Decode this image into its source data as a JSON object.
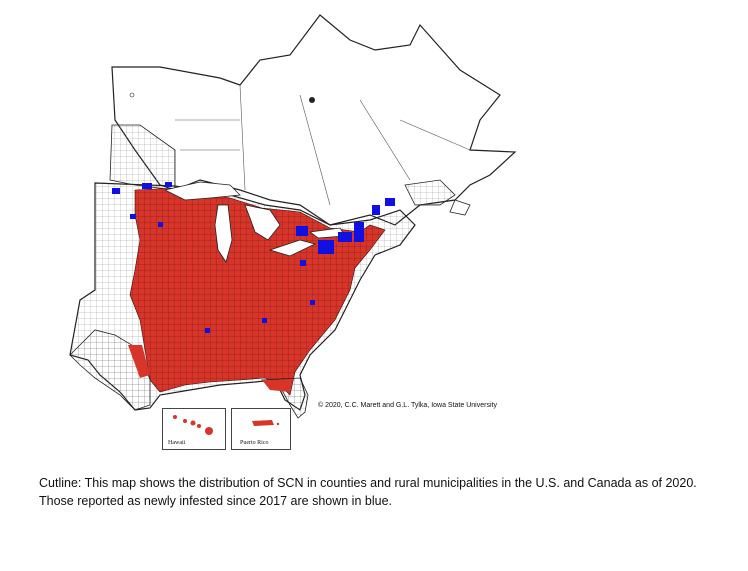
{
  "map": {
    "credit": "© 2020, C.C. Marett and G.L. Tylka, Iowa State University",
    "insets": {
      "hawaii_label": "Hawaii",
      "puerto_rico_label": "Puerto Rico"
    },
    "legend_colors": {
      "infested": "#d8352a",
      "newly_infested_since_2017": "#1010e0",
      "not_reported": "#ffffff",
      "boundary": "#222222"
    }
  },
  "caption": {
    "line1": "Cutline: This map shows the distribution of SCN in counties and rural municipalities in the U.S. and Canada as of 2020.",
    "line2": "Those reported as newly infested since 2017 are shown in blue."
  }
}
